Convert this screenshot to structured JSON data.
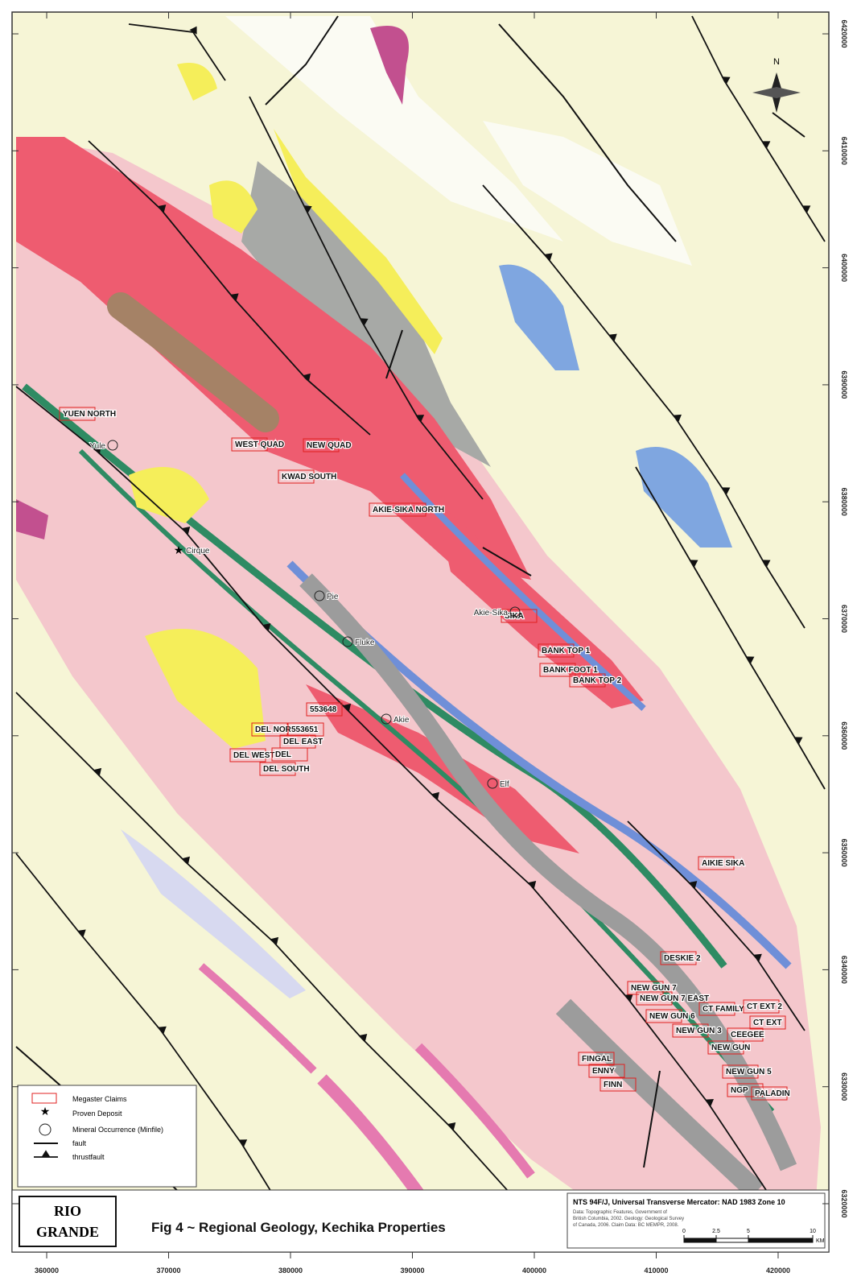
{
  "map": {
    "title": "Fig 4 ~ Regional Geology, Kechika Properties",
    "logo": [
      "RIO",
      "GRANDE"
    ],
    "north": "N",
    "xlim": [
      357160,
      424160
    ],
    "eastings": [
      360000,
      370000,
      380000,
      390000,
      400000,
      410000,
      420000
    ],
    "ylim": [
      6315870,
      6421860
    ],
    "northings": [
      6420000,
      6410000,
      6400000,
      6390000,
      6380000,
      6370000,
      6360000,
      6350000,
      6340000,
      6330000,
      6320000
    ],
    "claims": [
      "YUEN NORTH",
      "WEST QUAD",
      "NEW QUAD",
      "KWAD SOUTH",
      "AKIE-SIKA NORTH",
      "SIKA",
      "BANK TOP 1",
      "BANK FOOT 1",
      "BANK TOP 2",
      "553648",
      "DEL NORTH",
      "553651",
      "DEL EAST",
      "DEL WEST",
      "DEL",
      "DEL SOUTH",
      "AIKIE SIKA",
      "DESKIE 2",
      "NEW GUN 7",
      "NEW GUN 7 EAST",
      "CT FAMILY",
      "CT EXT 2",
      "NEW GUN 6",
      "NEW GUN 3",
      "CEEGEE",
      "CT EXT",
      "NEW GUN",
      "NEW GUN 5",
      "NGP",
      "PALADIN",
      "FINGAL",
      "ENNY",
      "FINN"
    ],
    "occurrences": [
      "Yule",
      "Cirque",
      "Pie",
      "Fluke",
      "Akie",
      "Elf",
      "Akie-Sika"
    ],
    "legend": [
      "Megaster Claims",
      "Proven Deposit",
      "Mineral Occurrence (Minfile)",
      "fault",
      "thrustfault"
    ],
    "info": {
      "projection": "NTS 94F/J, Universal Transverse Mercator: NAD 1983 Zone 10",
      "credits": [
        "Data: Topographic Features, Government of",
        "British Columbia, 2002. Geology: Geological Survey",
        "of Canada, 2006. Claim Data: BC MEMPR, 2008."
      ]
    },
    "scale": {
      "ticks": [
        0,
        2.5,
        5,
        10
      ],
      "unit": "KM"
    }
  }
}
